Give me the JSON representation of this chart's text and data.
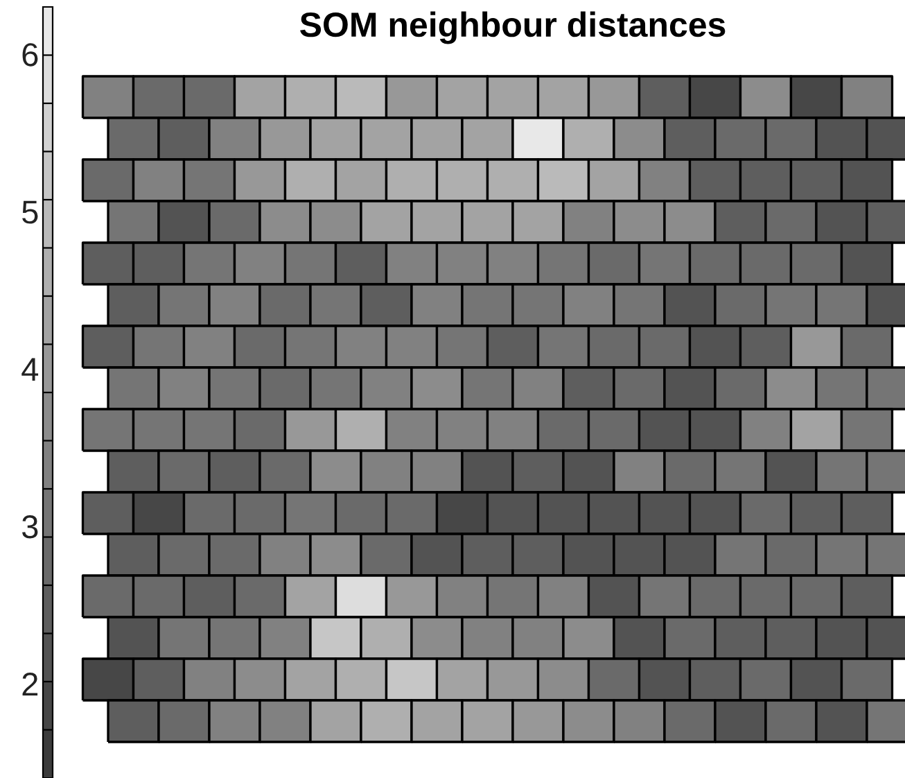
{
  "chart_data": {
    "type": "heatmap",
    "title": "SOM neighbour distances",
    "categories": [
      null,
      null,
      null,
      null,
      null,
      null,
      null,
      null,
      null,
      null,
      null,
      null,
      null,
      null,
      null,
      null
    ],
    "y_categories": [
      null,
      null,
      null,
      null,
      null,
      null,
      null,
      null,
      null,
      null,
      null,
      null,
      null,
      null,
      null,
      null
    ],
    "cells": [
      [
        3.3,
        2.7,
        2.8,
        4.4,
        4.6,
        4.8,
        4.0,
        4.2,
        4.3,
        4.4,
        4.0,
        2.4,
        1.9,
        3.6,
        1.9,
        3.5
      ],
      [
        2.7,
        2.5,
        3.3,
        4.0,
        4.4,
        4.3,
        4.3,
        4.4,
        6.0,
        4.6,
        3.7,
        2.6,
        2.7,
        2.7,
        2.1,
        2.2
      ],
      [
        2.8,
        3.5,
        3.1,
        4.0,
        4.6,
        4.2,
        4.5,
        4.6,
        4.6,
        4.8,
        4.2,
        3.3,
        2.4,
        2.6,
        2.6,
        2.1
      ],
      [
        3.1,
        2.2,
        2.7,
        3.7,
        3.7,
        4.2,
        4.2,
        4.3,
        4.2,
        3.5,
        3.7,
        3.7,
        2.6,
        2.7,
        2.1,
        2.6
      ],
      [
        2.6,
        2.4,
        3.1,
        3.3,
        3.1,
        2.4,
        3.5,
        3.5,
        3.5,
        3.1,
        2.8,
        3.1,
        2.8,
        2.7,
        2.8,
        2.1
      ],
      [
        2.4,
        3.1,
        3.3,
        2.7,
        3.1,
        2.4,
        3.3,
        3.1,
        3.0,
        3.5,
        3.1,
        2.1,
        2.7,
        3.1,
        3.0,
        2.1
      ],
      [
        2.4,
        3.0,
        3.5,
        2.7,
        3.1,
        3.5,
        3.3,
        3.0,
        2.6,
        3.1,
        2.8,
        2.7,
        2.1,
        2.6,
        3.9,
        2.7
      ],
      [
        3.1,
        3.3,
        3.0,
        2.7,
        3.1,
        3.5,
        3.7,
        3.1,
        3.3,
        2.6,
        2.8,
        2.1,
        2.7,
        3.6,
        3.0,
        3.1
      ],
      [
        3.0,
        3.0,
        3.0,
        2.8,
        3.9,
        4.6,
        3.5,
        3.3,
        3.3,
        2.7,
        2.8,
        2.1,
        2.2,
        3.5,
        4.2,
        3.1
      ],
      [
        2.4,
        2.7,
        2.6,
        2.8,
        3.7,
        3.5,
        3.3,
        2.1,
        2.4,
        2.1,
        3.3,
        2.8,
        3.0,
        2.2,
        3.0,
        3.1
      ],
      [
        2.6,
        1.9,
        2.7,
        2.8,
        3.0,
        2.7,
        2.8,
        1.9,
        2.1,
        2.2,
        2.2,
        2.1,
        2.2,
        2.7,
        2.6,
        2.6
      ],
      [
        2.4,
        2.7,
        2.8,
        3.5,
        3.6,
        2.7,
        2.2,
        2.6,
        2.6,
        2.1,
        2.2,
        2.2,
        3.0,
        2.7,
        3.0,
        3.0
      ],
      [
        2.8,
        2.8,
        2.6,
        2.8,
        4.4,
        5.9,
        3.9,
        3.3,
        3.0,
        3.3,
        2.2,
        3.1,
        2.8,
        2.7,
        2.7,
        2.6
      ],
      [
        2.2,
        3.0,
        3.1,
        3.3,
        5.3,
        4.6,
        3.7,
        3.5,
        3.5,
        3.6,
        2.2,
        2.7,
        2.4,
        2.4,
        2.2,
        2.1
      ],
      [
        1.9,
        2.4,
        3.5,
        3.7,
        4.2,
        4.5,
        5.1,
        4.2,
        3.9,
        3.7,
        2.8,
        2.2,
        2.4,
        2.7,
        2.2,
        2.7
      ],
      [
        2.4,
        2.7,
        3.5,
        3.3,
        4.2,
        4.6,
        4.4,
        4.2,
        3.9,
        3.7,
        3.3,
        2.7,
        2.1,
        2.7,
        2.1,
        3.0
      ]
    ],
    "clim": [
      1.4,
      6.3
    ],
    "cticks": [
      2,
      3,
      4,
      5,
      6
    ]
  }
}
